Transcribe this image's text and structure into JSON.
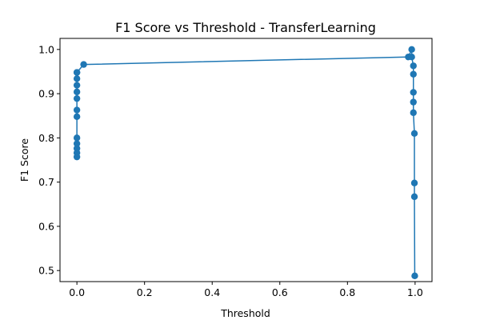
{
  "chart_data": {
    "type": "line",
    "title": "F1 Score vs Threshold - TransferLearning",
    "xlabel": "Threshold",
    "ylabel": "F1 Score",
    "xlim": [
      -0.05,
      1.05
    ],
    "ylim": [
      0.475,
      1.025
    ],
    "x_ticks": [
      0.0,
      0.2,
      0.4,
      0.6,
      0.8,
      1.0
    ],
    "x_tick_labels": [
      "0.0",
      "0.2",
      "0.4",
      "0.6",
      "0.8",
      "1.0"
    ],
    "y_ticks": [
      0.5,
      0.6,
      0.7,
      0.8,
      0.9,
      1.0
    ],
    "y_tick_labels": [
      "0.5",
      "0.6",
      "0.7",
      "0.8",
      "0.9",
      "1.0"
    ],
    "grid": false,
    "series": [
      {
        "color": "#1f77b4",
        "marker": "circle",
        "x": [
          0.0,
          0.0,
          0.0,
          0.0,
          0.0,
          0.0,
          0.0,
          0.0,
          0.0,
          0.0,
          0.0,
          0.0,
          0.0,
          0.02,
          0.98,
          0.99,
          0.99,
          0.995,
          0.995,
          0.995,
          0.995,
          0.995,
          0.998,
          0.998,
          0.998,
          0.999
        ],
        "y": [
          0.757,
          0.766,
          0.776,
          0.787,
          0.8,
          0.848,
          0.863,
          0.889,
          0.904,
          0.919,
          0.934,
          0.948,
          0.948,
          0.966,
          0.983,
          1.0,
          0.983,
          0.963,
          0.944,
          0.903,
          0.881,
          0.857,
          0.81,
          0.698,
          0.667,
          0.488
        ]
      }
    ]
  }
}
